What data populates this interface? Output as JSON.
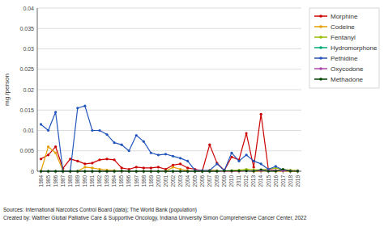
{
  "chart_data": {
    "type": "line",
    "ylabel": "mg /person",
    "x": [
      1984,
      1985,
      1986,
      1987,
      1988,
      1989,
      1990,
      1991,
      1992,
      1993,
      1994,
      1995,
      1996,
      1997,
      1998,
      1999,
      2000,
      2001,
      2002,
      2003,
      2004,
      2005,
      2006,
      2007,
      2008,
      2009,
      2010,
      2011,
      2012,
      2013,
      2014,
      2015,
      2016,
      2017,
      2018,
      2019
    ],
    "series": [
      {
        "name": "Morphine",
        "color": "#cc0000",
        "values": [
          0.003,
          0.004,
          0.006,
          0.0007,
          0.003,
          0.0025,
          0.0018,
          0.002,
          0.0028,
          0.003,
          0.0028,
          0.0008,
          0.0005,
          0.001,
          0.0008,
          0.0008,
          0.001,
          0.0005,
          0.0015,
          0.0018,
          0.0008,
          0.0005,
          0.0001,
          0.0065,
          0.002,
          0.0002,
          0.0035,
          0.0028,
          0.0093,
          0.001,
          0.014,
          0.0005,
          0.0002,
          0.0002,
          0.0001,
          0.0001
        ]
      },
      {
        "name": "Codeine",
        "color": "#e8a000",
        "values": [
          0.0,
          0.006,
          0.0045,
          0.0002,
          0.0,
          0.0,
          0.001,
          0.0008,
          0.0005,
          0.0003,
          0.0002,
          0.0,
          0.0,
          0.0,
          0.0,
          0.0,
          0.0,
          0.0,
          0.001,
          0.0005,
          0.0002,
          0.0,
          0.0,
          0.0003,
          0.0002,
          0.0,
          0.0,
          0.0,
          0.0002,
          0.0,
          0.0,
          0.0001,
          0.0,
          0.0,
          0.0,
          0.0
        ]
      },
      {
        "name": "Fentanyl",
        "color": "#99bb00",
        "values": [
          0.0,
          0.0,
          0.0,
          0.0,
          0.0,
          0.0,
          0.0,
          0.0,
          0.0,
          0.0,
          0.0,
          0.0,
          0.0,
          0.0,
          0.0,
          0.0,
          0.0,
          0.0,
          0.0,
          0.0,
          0.0,
          0.0,
          0.0,
          0.0,
          0.0,
          0.0001,
          0.0002,
          0.0003,
          0.0005,
          0.0004,
          0.0003,
          0.0005,
          0.0008,
          0.0004,
          0.0003,
          0.0002
        ]
      },
      {
        "name": "Hydromorphone",
        "color": "#00aa77",
        "values": [
          0.0,
          0.0,
          0.0,
          0.0,
          0.0,
          0.0,
          0.0,
          0.0,
          0.0,
          0.0,
          0.0,
          0.0,
          0.0,
          0.0,
          0.0,
          0.0,
          0.0,
          0.0,
          0.0,
          0.0,
          0.0,
          0.0,
          0.0,
          0.0,
          0.0001,
          0.0001,
          0.0001,
          0.0001,
          0.0001,
          0.0001,
          0.0001,
          0.0001,
          0.0001,
          0.0001,
          0.0001,
          0.0001
        ]
      },
      {
        "name": "Pethidine",
        "color": "#2255bb",
        "values": [
          0.0115,
          0.01,
          0.0145,
          0.0,
          0.0,
          0.0155,
          0.016,
          0.01,
          0.01,
          0.009,
          0.007,
          0.0065,
          0.005,
          0.0088,
          0.0073,
          0.0045,
          0.004,
          0.0042,
          0.0037,
          0.0032,
          0.0025,
          0.0002,
          0.0002,
          0.0002,
          0.0018,
          0.0002,
          0.0045,
          0.0025,
          0.004,
          0.0025,
          0.0018,
          0.0005,
          0.0012,
          0.0003,
          0.0001,
          0.0001
        ]
      },
      {
        "name": "Oxycodone",
        "color": "#aa44aa",
        "values": [
          0.0,
          0.0,
          0.0,
          0.0,
          0.0,
          0.0,
          0.0,
          0.0,
          0.0,
          0.0,
          0.0,
          0.0,
          0.0,
          0.0,
          0.0,
          0.0,
          0.0,
          0.0,
          0.0,
          0.0,
          0.0,
          0.0,
          0.0,
          0.0,
          0.0,
          0.0,
          0.0,
          0.0,
          0.0001,
          0.0001,
          0.0001,
          0.0002,
          0.0002,
          0.0001,
          0.0001,
          0.0001
        ]
      },
      {
        "name": "Methadone",
        "color": "#004400",
        "values": [
          0.0,
          0.0,
          0.0,
          0.0,
          0.0,
          0.0,
          0.0,
          0.0,
          0.0,
          0.0,
          0.0,
          0.0001,
          0.0,
          0.0,
          0.0,
          0.0,
          0.0,
          0.0,
          0.0,
          0.0,
          0.0,
          0.0,
          0.0,
          0.0,
          0.0,
          0.0001,
          0.0001,
          0.0001,
          0.0001,
          0.0,
          0.0004,
          0.0,
          0.0,
          0.0005,
          0.0,
          0.0
        ]
      }
    ],
    "xlim": [
      1983.5,
      2019.5
    ],
    "xticks": [
      1984,
      1985,
      1986,
      1987,
      1988,
      1989,
      1990,
      1991,
      1992,
      1993,
      1994,
      1995,
      1996,
      1997,
      1998,
      1999,
      2000,
      2001,
      2002,
      2003,
      2004,
      2005,
      2006,
      2007,
      2008,
      2009,
      2010,
      2011,
      2012,
      2013,
      2014,
      2015,
      2016,
      2017,
      2018,
      2019
    ],
    "ylim": [
      0,
      0.04
    ],
    "yticks": [
      0,
      0.005,
      0.01,
      0.015,
      0.02,
      0.025,
      0.03,
      0.035,
      0.04
    ],
    "grid": true,
    "legend": "right",
    "marker": "circle",
    "line_style": "solid",
    "annotations": [
      "Sources: International Narcotics Control Board (data); The World Bank (population)",
      "Created by: Walther Global Palliative Care & Supportive Oncology, Indiana University Simon Comprehensive Cancer Center, 2022"
    ]
  }
}
